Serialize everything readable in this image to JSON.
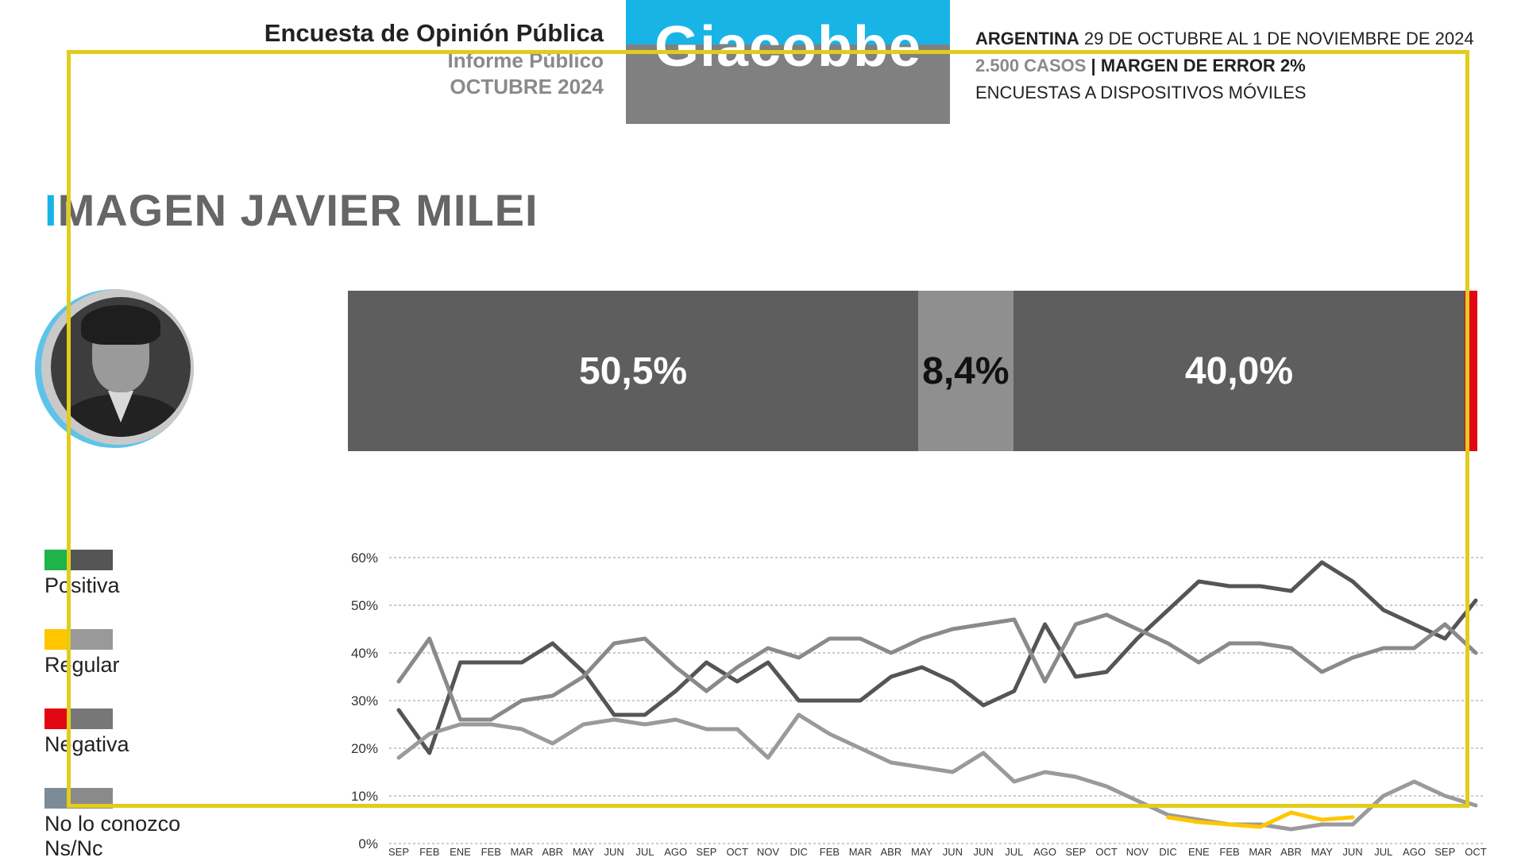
{
  "header": {
    "survey_title": "Encuesta de Opinión Pública",
    "report_type": "Informe Público",
    "report_period": "OCTUBRE 2024",
    "logo_text": "Giacobbe",
    "country": "ARGENTINA",
    "date_range": "29 DE OCTUBRE AL 1 DE NOVIEMBRE DE 2024",
    "cases": "2.500 CASOS",
    "separator": "|",
    "margin_of_error": "MARGEN DE ERROR 2%",
    "method": "ENCUESTAS A DISPOSITIVOS MÓVILES"
  },
  "section": {
    "title_accent": "I",
    "title_rest": "MAGEN JAVIER MILEI"
  },
  "current_image": {
    "segments": [
      {
        "label": "50,5%",
        "value": 50.5,
        "color": "#5e5e5e"
      },
      {
        "label": "8,4%",
        "value": 8.4,
        "color": "#8f8f8f"
      },
      {
        "label": "40,0%",
        "value": 40.0,
        "color": "#5e5e5e"
      },
      {
        "label": "",
        "value": 1.1,
        "color": "#e30613"
      }
    ]
  },
  "legend": [
    {
      "label": "Positiva",
      "swatch": [
        "#1fb34a",
        "#555555"
      ]
    },
    {
      "label": "Regular",
      "swatch": [
        "#ffc600",
        "#999999"
      ]
    },
    {
      "label": "Negativa",
      "swatch": [
        "#e30613",
        "#777777"
      ]
    },
    {
      "label": "No lo conozco",
      "swatch": [
        "#7b8c96",
        "#8a8a8a"
      ]
    },
    {
      "label": "Ns/Nc",
      "swatch": []
    }
  ],
  "chart_data": {
    "type": "line",
    "ylim": [
      0,
      60
    ],
    "y_ticks": [
      "0%",
      "10%",
      "20%",
      "30%",
      "40%",
      "50%",
      "60%"
    ],
    "grid": true,
    "categories": [
      "SEP",
      "FEB",
      "ENE",
      "FEB",
      "MAR",
      "ABR",
      "MAY",
      "JUN",
      "JUL",
      "AGO",
      "SEP",
      "OCT",
      "NOV",
      "DIC",
      "FEB",
      "MAR",
      "ABR",
      "MAY",
      "JUN",
      "JUN",
      "JUL",
      "AGO",
      "SEP",
      "OCT",
      "NOV",
      "DIC",
      "ENE",
      "FEB",
      "MAR",
      "ABR",
      "MAY",
      "JUN",
      "JUL",
      "AGO",
      "SEP",
      "OCT"
    ],
    "series": [
      {
        "color": "#555555",
        "values": [
          28,
          19,
          38,
          38,
          38,
          42,
          36,
          27,
          27,
          32,
          38,
          34,
          38,
          30,
          30,
          30,
          35,
          37,
          34,
          29,
          32,
          46,
          35,
          36,
          43,
          49,
          55,
          54,
          54,
          53,
          59,
          55,
          49,
          46,
          43,
          51
        ]
      },
      {
        "color": "#8a8a8a",
        "values": [
          34,
          43,
          26,
          26,
          30,
          31,
          35,
          42,
          43,
          37,
          32,
          37,
          41,
          39,
          43,
          43,
          40,
          43,
          45,
          46,
          47,
          34,
          46,
          48,
          45,
          42,
          38,
          42,
          42,
          41,
          36,
          39,
          41,
          41,
          46,
          40
        ]
      },
      {
        "color": "#9a9a9a",
        "values": [
          18,
          23,
          25,
          25,
          24,
          21,
          25,
          26,
          25,
          26,
          24,
          24,
          18,
          27,
          23,
          20,
          17,
          16,
          15,
          19,
          13,
          15,
          14,
          12,
          9,
          6,
          5,
          4,
          4,
          3,
          4,
          4,
          10,
          13,
          10,
          8
        ]
      },
      {
        "color": "#ffc600",
        "values": [
          null,
          null,
          null,
          null,
          null,
          null,
          null,
          null,
          null,
          null,
          null,
          null,
          null,
          null,
          null,
          null,
          null,
          null,
          null,
          null,
          null,
          null,
          null,
          null,
          null,
          5.5,
          4.5,
          4,
          3.5,
          6.5,
          5,
          5.5,
          null,
          null,
          null,
          null
        ]
      }
    ]
  }
}
